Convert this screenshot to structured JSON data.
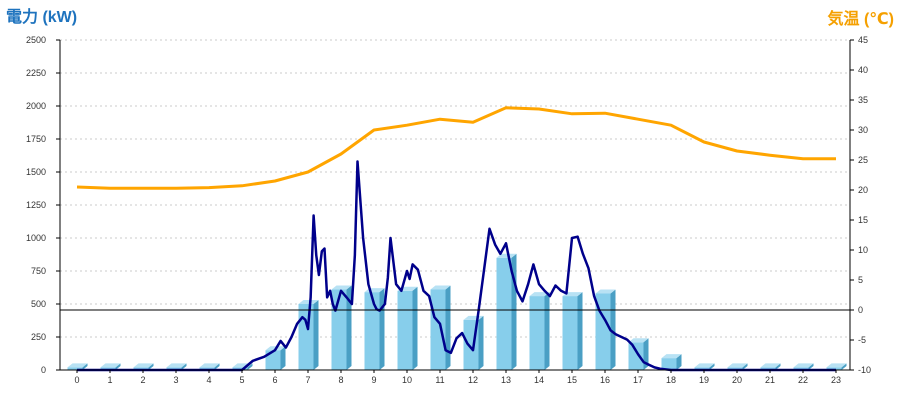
{
  "chart_data": {
    "type": "bar",
    "left_axis_title": "電力 (kW)",
    "right_axis_title": "気温 (℃)",
    "colors": {
      "left_title": "#1e73be",
      "right_title": "#f5a000",
      "bar_front": "#87ceeb",
      "bar_side": "#4a9fc4",
      "bar_top": "#b8e2f4",
      "power_line": "#00008b",
      "temp_line": "#ffa500",
      "grid": "#bbbbbb",
      "zero_line": "#000000"
    },
    "left_axis": {
      "min": 0,
      "max": 2500,
      "ticks": [
        0,
        250,
        500,
        750,
        1000,
        1250,
        1500,
        1750,
        2000,
        2250,
        2500
      ]
    },
    "right_axis": {
      "min": -10,
      "max": 45,
      "ticks": [
        -10,
        -5,
        0,
        5,
        10,
        15,
        20,
        25,
        30,
        35,
        40,
        45
      ]
    },
    "categories": [
      "0",
      "1",
      "2",
      "3",
      "4",
      "5",
      "6",
      "7",
      "8",
      "9",
      "10",
      "11",
      "12",
      "13",
      "14",
      "15",
      "16",
      "17",
      "18",
      "19",
      "20",
      "21",
      "22",
      "23"
    ],
    "series": [
      {
        "kind": "bar",
        "axis": "left",
        "values": [
          20,
          20,
          20,
          20,
          20,
          20,
          150,
          500,
          610,
          590,
          600,
          610,
          380,
          850,
          560,
          560,
          580,
          210,
          90,
          20,
          20,
          20,
          20,
          20
        ]
      },
      {
        "kind": "line",
        "axis": "right",
        "x": [
          0,
          1,
          2,
          3,
          4,
          5,
          6,
          7,
          8,
          9,
          10,
          11,
          12,
          13,
          14,
          15,
          16,
          17,
          18,
          19,
          20,
          21,
          22,
          23
        ],
        "values": [
          20.5,
          20.3,
          20.3,
          20.3,
          20.4,
          20.7,
          21.5,
          23,
          26,
          30,
          30.8,
          31.8,
          31.3,
          33.7,
          33.5,
          32.7,
          32.8,
          31.8,
          30.8,
          28,
          26.5,
          25.8,
          25.2,
          25.2
        ]
      },
      {
        "kind": "line",
        "axis": "left",
        "x": [
          0,
          1,
          2,
          3,
          4,
          5,
          5.33,
          5.67,
          6,
          6.17,
          6.33,
          6.5,
          6.67,
          6.83,
          6.92,
          7,
          7.08,
          7.17,
          7.25,
          7.33,
          7.42,
          7.5,
          7.58,
          7.67,
          7.75,
          7.83,
          8,
          8.17,
          8.33,
          8.42,
          8.5,
          8.67,
          8.83,
          9,
          9.08,
          9.17,
          9.33,
          9.42,
          9.5,
          9.67,
          9.83,
          10,
          10.08,
          10.17,
          10.33,
          10.5,
          10.67,
          10.83,
          11,
          11.17,
          11.33,
          11.5,
          11.67,
          11.83,
          12,
          12.17,
          12.33,
          12.5,
          12.67,
          12.83,
          13,
          13.17,
          13.33,
          13.5,
          13.67,
          13.83,
          14,
          14.17,
          14.33,
          14.5,
          14.67,
          14.83,
          15,
          15.17,
          15.33,
          15.5,
          15.67,
          15.83,
          16,
          16.17,
          16.33,
          16.5,
          16.67,
          16.83,
          17,
          17.17,
          17.33,
          17.5,
          17.67,
          18,
          18.17,
          18.33,
          18.5,
          19,
          20,
          21,
          22,
          23
        ],
        "values": [
          0,
          0,
          0,
          0,
          0,
          0,
          70,
          100,
          150,
          220,
          170,
          250,
          350,
          400,
          380,
          310,
          550,
          1170,
          870,
          720,
          900,
          920,
          550,
          600,
          500,
          450,
          600,
          550,
          500,
          870,
          1580,
          1000,
          650,
          500,
          460,
          450,
          500,
          700,
          1000,
          650,
          600,
          750,
          690,
          800,
          760,
          600,
          560,
          400,
          350,
          150,
          130,
          240,
          280,
          200,
          150,
          450,
          750,
          1070,
          950,
          880,
          960,
          750,
          600,
          520,
          650,
          800,
          650,
          600,
          560,
          640,
          600,
          580,
          1000,
          1010,
          880,
          770,
          560,
          450,
          380,
          300,
          270,
          250,
          230,
          190,
          120,
          60,
          40,
          20,
          10,
          0,
          0,
          0,
          0,
          0,
          0,
          0,
          0,
          0
        ]
      }
    ]
  }
}
